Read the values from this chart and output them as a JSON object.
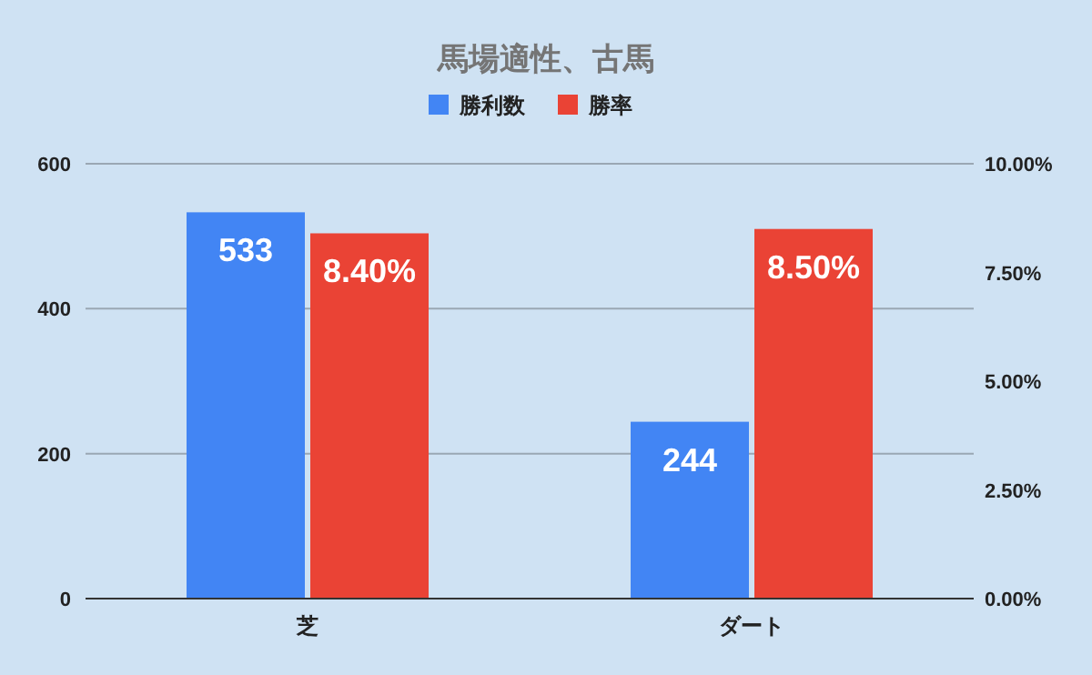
{
  "chart_data": {
    "type": "bar",
    "title": "馬場適性、古馬",
    "categories": [
      "芝",
      "ダート"
    ],
    "series": [
      {
        "name": "勝利数",
        "color": "#4285f4",
        "values": [
          533,
          244
        ],
        "value_labels": [
          "533",
          "244"
        ]
      },
      {
        "name": "勝率",
        "color": "#ea4335",
        "values": [
          8.4,
          8.5
        ],
        "value_labels": [
          "8.40%",
          "8.50%"
        ],
        "axis": "y2"
      }
    ],
    "ylim": [
      0,
      600
    ],
    "yticks": [
      0,
      200,
      400,
      600
    ],
    "y2lim": [
      0,
      10
    ],
    "y2ticks": [
      {
        "value": 0,
        "label": "0.00%"
      },
      {
        "value": 2.5,
        "label": "2.50%"
      },
      {
        "value": 5,
        "label": "5.00%"
      },
      {
        "value": 7.5,
        "label": "7.50%"
      },
      {
        "value": 10,
        "label": "10.00%"
      }
    ],
    "grid": "y",
    "legend": "top"
  }
}
